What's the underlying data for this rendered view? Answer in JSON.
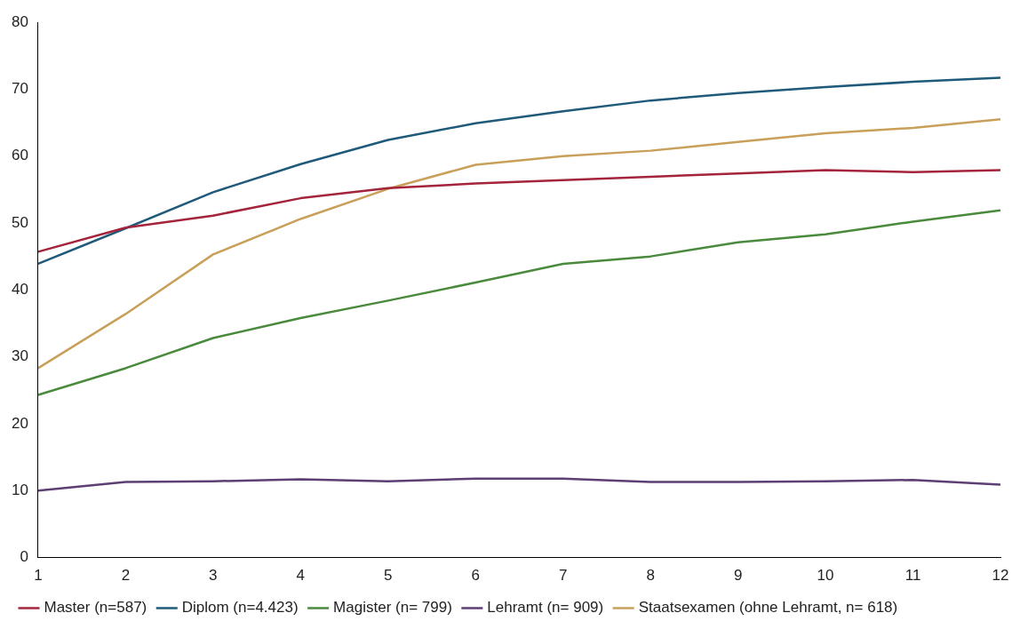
{
  "chart_data": {
    "type": "line",
    "x": [
      1,
      2,
      3,
      4,
      5,
      6,
      7,
      8,
      9,
      10,
      11,
      12
    ],
    "xlim": [
      1,
      12
    ],
    "xticks": [
      1,
      2,
      3,
      4,
      5,
      6,
      7,
      8,
      9,
      10,
      11,
      12
    ],
    "ylim": [
      0,
      80
    ],
    "yticks": [
      0,
      10,
      20,
      30,
      40,
      50,
      60,
      70,
      80
    ],
    "grid": false,
    "legend": "bottom",
    "marker": "none",
    "line_style": "solid",
    "series": [
      {
        "name": "Master (n=587)",
        "color": "#a4243b",
        "values": [
          45.7,
          49.3,
          51.1,
          53.7,
          55.2,
          55.9,
          56.4,
          56.9,
          57.4,
          57.9,
          57.6,
          57.9
        ]
      },
      {
        "name": "Diplom (n=4.423)",
        "color": "#1f5a7a",
        "values": [
          43.9,
          49.2,
          54.6,
          58.8,
          62.4,
          64.9,
          66.7,
          68.3,
          69.4,
          70.3,
          71.1,
          71.7
        ]
      },
      {
        "name": "Magister (n= 799)",
        "color": "#4a8a3c",
        "values": [
          24.3,
          28.3,
          32.8,
          35.8,
          38.4,
          41.1,
          43.9,
          45.0,
          47.1,
          48.3,
          50.2,
          51.9
        ]
      },
      {
        "name": "Lehramt (n= 909)",
        "color": "#5e3f74",
        "values": [
          10.0,
          11.3,
          11.4,
          11.7,
          11.4,
          11.8,
          11.8,
          11.3,
          11.3,
          11.4,
          11.6,
          10.9
        ]
      },
      {
        "name": "Staatsexamen (ohne Lehramt, n= 618)",
        "color": "#c9a05a",
        "values": [
          28.3,
          36.4,
          45.3,
          50.6,
          55.1,
          58.7,
          60.0,
          60.8,
          62.1,
          63.4,
          64.2,
          65.5
        ]
      }
    ]
  }
}
